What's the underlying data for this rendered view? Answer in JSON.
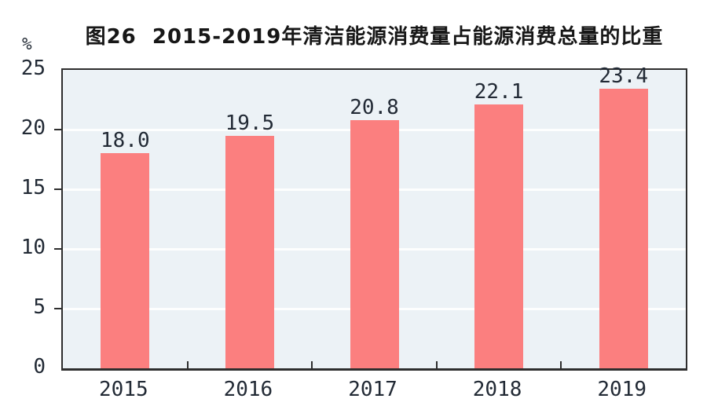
{
  "figure": {
    "title": "图26  2015-2019年清洁能源消费量占能源消费总量的比重",
    "unit_label": "%"
  },
  "chart_data": {
    "type": "bar",
    "title": "图26  2015-2019年清洁能源消费量占能源消费总量的比重",
    "categories": [
      "2015",
      "2016",
      "2017",
      "2018",
      "2019"
    ],
    "values": [
      18.0,
      19.5,
      20.8,
      22.1,
      23.4
    ],
    "value_labels": [
      "18.0",
      "19.5",
      "20.8",
      "22.1",
      "23.4"
    ],
    "xlabel": "",
    "ylabel": "%",
    "ylim": [
      0,
      25
    ],
    "yticks": [
      0,
      5,
      10,
      15,
      20,
      25
    ],
    "gridlines": [
      5,
      10,
      15,
      20
    ],
    "grid": true,
    "legend_position": "none",
    "colors": {
      "bar": "#fb7f7f",
      "plot_background": "#ecf2f6",
      "gridline": "#fdfefe",
      "frame": "#2e2e2e",
      "text": "#222a35",
      "title_text": "#171717"
    }
  }
}
